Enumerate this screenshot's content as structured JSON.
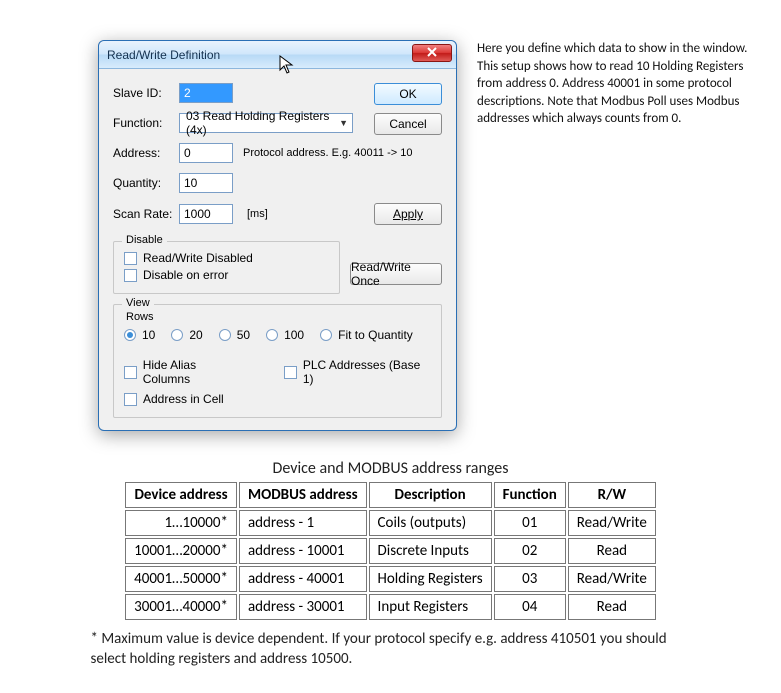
{
  "dialog": {
    "title": "Read/Write Definition",
    "slaveId": {
      "label": "Slave ID:",
      "value": "2"
    },
    "function": {
      "label": "Function:",
      "selected": "03 Read Holding Registers (4x)"
    },
    "address": {
      "label": "Address:",
      "value": "0",
      "hint": "Protocol address. E.g. 40011 -> 10"
    },
    "quantity": {
      "label": "Quantity:",
      "value": "10"
    },
    "scanRate": {
      "label": "Scan Rate:",
      "value": "1000",
      "unit": "[ms]"
    },
    "buttons": {
      "ok": "OK",
      "cancel": "Cancel",
      "apply": "Apply",
      "readWriteOnce": "Read/Write Once"
    },
    "disable": {
      "title": "Disable",
      "rwDisabled": "Read/Write Disabled",
      "onError": "Disable on error"
    },
    "view": {
      "title": "View",
      "rowsTitle": "Rows",
      "rows": [
        "10",
        "20",
        "50",
        "100",
        "Fit to Quantity"
      ],
      "rowsSelected": "10",
      "hideAlias": "Hide Alias Columns",
      "plcAddr": "PLC Addresses (Base 1)",
      "addrInCell": "Address in Cell"
    }
  },
  "sideText": "Here you define which data to show in the window. This setup shows how to read 10 Holding Registers from address 0. Address 40001 in some protocol descriptions. Note that Modbus Poll uses Modbus addresses which always counts from 0.",
  "tableCaption": "Device and MODBUS address ranges",
  "table": {
    "headers": [
      "Device address",
      "MODBUS address",
      "Description",
      "Function",
      "R/W"
    ],
    "rows": [
      [
        "1…10000*",
        "address - 1",
        "Coils (outputs)",
        "01",
        "Read/Write"
      ],
      [
        "10001…20000*",
        "address - 10001",
        "Discrete Inputs",
        "02",
        "Read"
      ],
      [
        "40001…50000*",
        "address - 40001",
        "Holding Registers",
        "03",
        "Read/Write"
      ],
      [
        "30001…40000*",
        "address - 30001",
        "Input Registers",
        "04",
        "Read"
      ]
    ]
  },
  "footnote": "* Maximum value is device dependent. If your protocol specify e.g. address 410501 you should select holding registers and address 10500.",
  "colors": {
    "titlebarText": "#14314f",
    "closeRed": "#c21b18",
    "inputBorder": "#7a9ec7",
    "selectBg": "#3399ff",
    "btnDefaultBorder": "#3b8ed8",
    "tableBorder": "#777777"
  }
}
